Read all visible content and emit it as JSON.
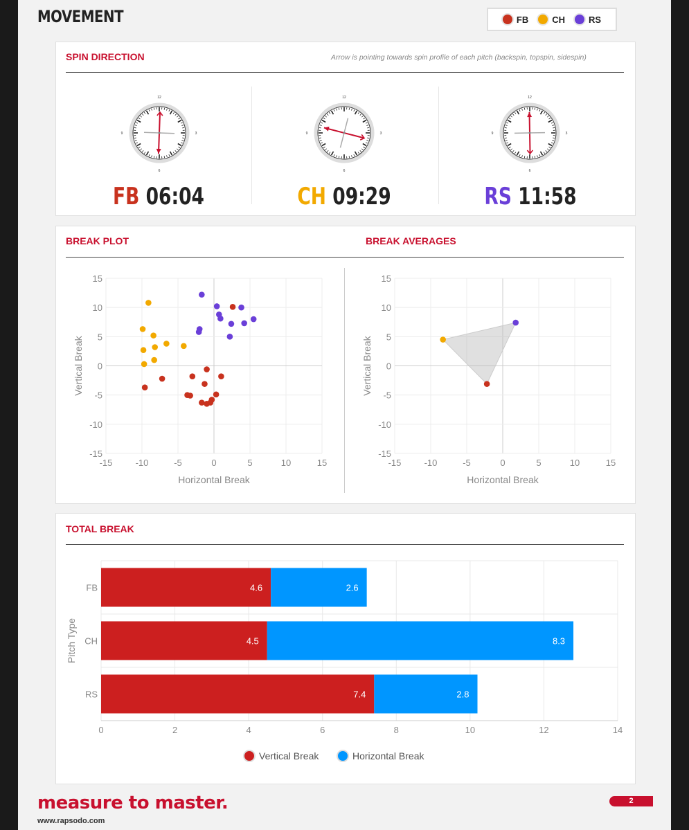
{
  "header": {
    "title": "MOVEMENT",
    "legend": [
      {
        "label": "FB",
        "color": "#c8321e"
      },
      {
        "label": "CH",
        "color": "#f2a900"
      },
      {
        "label": "RS",
        "color": "#6a3fd8"
      }
    ]
  },
  "spin_direction": {
    "title": "SPIN DIRECTION",
    "note": "Arrow is pointing towards spin profile of each pitch (backspin, topspin, sidespin)",
    "clock_labels": {
      "twelve": "12",
      "three": "3",
      "six": "6",
      "nine": "9"
    },
    "pitches": [
      {
        "code": "FB",
        "time": "06:04",
        "color": "#c8321e"
      },
      {
        "code": "CH",
        "time": "09:29",
        "color": "#f2a900"
      },
      {
        "code": "RS",
        "time": "11:58",
        "color": "#6a3fd8"
      }
    ]
  },
  "break_plot": {
    "title": "BREAK PLOT"
  },
  "break_averages": {
    "title": "BREAK AVERAGES"
  },
  "total_break": {
    "title": "TOTAL BREAK"
  },
  "chart_data": [
    {
      "type": "scatter",
      "title": "BREAK PLOT",
      "xlabel": "Horizontal Break",
      "ylabel": "Vertical Break",
      "xlim": [
        -15,
        15
      ],
      "ylim": [
        -15,
        15
      ],
      "xticks": [
        -15,
        -10,
        -5,
        0,
        5,
        10,
        15
      ],
      "yticks": [
        -15,
        -10,
        -5,
        0,
        5,
        10,
        15
      ],
      "grid": true,
      "series": [
        {
          "name": "FB",
          "color": "#c8321e",
          "points": [
            [
              2.6,
              10.1
            ],
            [
              -1,
              -0.6
            ],
            [
              -3,
              -1.8
            ],
            [
              1,
              -1.8
            ],
            [
              -7.2,
              -2.2
            ],
            [
              -1.3,
              -3.1
            ],
            [
              -9.6,
              -3.7
            ],
            [
              -3.7,
              -5
            ],
            [
              -3.3,
              -5.1
            ],
            [
              0.3,
              -4.9
            ],
            [
              -0.3,
              -5.8
            ],
            [
              -1.7,
              -6.3
            ],
            [
              -0.5,
              -6.3
            ],
            [
              -1,
              -6.5
            ]
          ]
        },
        {
          "name": "CH",
          "color": "#f2a900",
          "points": [
            [
              -9.1,
              10.8
            ],
            [
              -9.9,
              6.3
            ],
            [
              -8.4,
              5.2
            ],
            [
              -6.6,
              3.8
            ],
            [
              -4.2,
              3.4
            ],
            [
              -8.2,
              3.2
            ],
            [
              -9.8,
              2.7
            ],
            [
              -8.3,
              1
            ],
            [
              -9.7,
              0.3
            ]
          ]
        },
        {
          "name": "RS",
          "color": "#6a3fd8",
          "points": [
            [
              -1.7,
              12.2
            ],
            [
              0.4,
              10.2
            ],
            [
              3.8,
              10
            ],
            [
              0.7,
              8.8
            ],
            [
              0.9,
              8.1
            ],
            [
              5.5,
              8
            ],
            [
              2.4,
              7.2
            ],
            [
              4.2,
              7.3
            ],
            [
              -2,
              6.3
            ],
            [
              -2.1,
              5.8
            ],
            [
              2.2,
              5
            ]
          ]
        }
      ]
    },
    {
      "type": "scatter",
      "title": "BREAK AVERAGES",
      "xlabel": "Horizontal Break",
      "ylabel": "Vertical Break",
      "xlim": [
        -15,
        15
      ],
      "ylim": [
        -15,
        15
      ],
      "xticks": [
        -15,
        -10,
        -5,
        0,
        5,
        10,
        15
      ],
      "yticks": [
        -15,
        -10,
        -5,
        0,
        5,
        10,
        15
      ],
      "grid": true,
      "series": [
        {
          "name": "FB",
          "color": "#c8321e",
          "points": [
            [
              -2.2,
              -3.1
            ]
          ]
        },
        {
          "name": "CH",
          "color": "#f2a900",
          "points": [
            [
              -8.3,
              4.5
            ]
          ]
        },
        {
          "name": "RS",
          "color": "#6a3fd8",
          "points": [
            [
              1.8,
              7.4
            ]
          ]
        }
      ]
    },
    {
      "type": "bar",
      "orientation": "horizontal",
      "stacked": true,
      "title": "TOTAL BREAK",
      "ylabel": "Pitch Type",
      "categories": [
        "FB",
        "CH",
        "RS"
      ],
      "xlim": [
        0,
        14
      ],
      "xticks": [
        0,
        2,
        4,
        6,
        8,
        10,
        12,
        14
      ],
      "legend_position": "bottom",
      "series": [
        {
          "name": "Vertical Break",
          "color": "#cc1f1f",
          "values": [
            4.6,
            4.5,
            7.4
          ]
        },
        {
          "name": "Horizontal Break",
          "color": "#0096ff",
          "values": [
            2.6,
            8.3,
            2.8
          ]
        }
      ]
    }
  ],
  "footer": {
    "tagline": "measure to master.",
    "url": "www.rapsodo.com",
    "page_number": "2"
  }
}
